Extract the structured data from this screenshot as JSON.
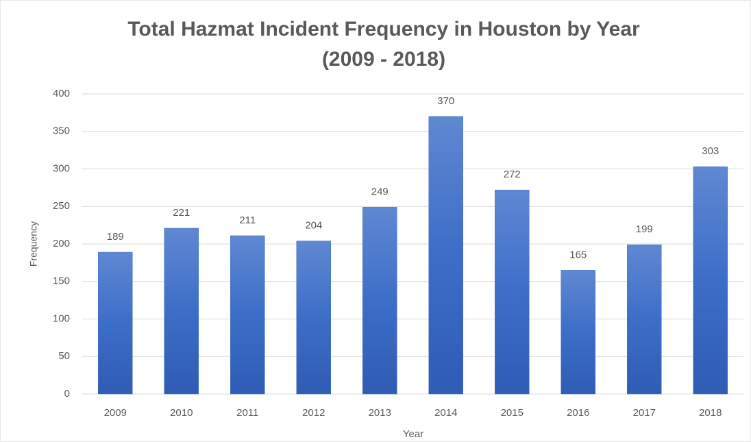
{
  "chart_data": {
    "type": "bar",
    "title": [
      "Total Hazmat Incident Frequency in Houston by Year",
      "(2009 - 2018)"
    ],
    "x_label": "Year",
    "y_label": "Frequency",
    "categories": [
      "2009",
      "2010",
      "2011",
      "2012",
      "2013",
      "2014",
      "2015",
      "2016",
      "2017",
      "2018"
    ],
    "values": [
      189,
      221,
      211,
      204,
      249,
      370,
      272,
      165,
      199,
      303
    ],
    "color": "#4472c4",
    "ylim": [
      0,
      400
    ],
    "yticks": [
      0,
      50,
      100,
      150,
      200,
      250,
      300,
      350,
      400
    ],
    "grid": true
  }
}
